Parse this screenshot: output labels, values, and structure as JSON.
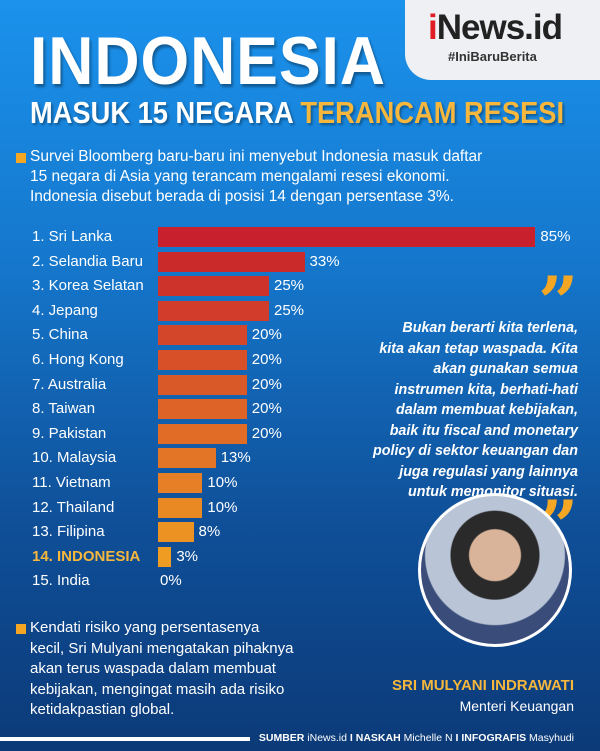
{
  "logo": {
    "brand": "iNews.id",
    "tagline": "#IniBaruBerita"
  },
  "title": {
    "line1": "INDONESIA",
    "line2_white": "MASUK 15 NEGARA",
    "line2_yellow": "TERANCAM RESESI"
  },
  "intro": [
    "Survei Bloomberg baru-baru ini menyebut Indonesia masuk daftar",
    "15 negara di Asia yang terancam mengalami resesi ekonomi.",
    "Indonesia disebut berada di posisi 14 dengan persentase 3%."
  ],
  "chart_data": {
    "type": "bar",
    "orientation": "horizontal",
    "categories": [
      "1. Sri Lanka",
      "2. Selandia Baru",
      "3. Korea Selatan",
      "4. Jepang",
      "5. China",
      "6. Hong Kong",
      "7. Australia",
      "8. Taiwan",
      "9. Pakistan",
      "10. Malaysia",
      "11. Vietnam",
      "12. Thailand",
      "13. Filipina",
      "14. INDONESIA",
      "15. India"
    ],
    "values": [
      85,
      33,
      25,
      25,
      20,
      20,
      20,
      20,
      20,
      13,
      10,
      10,
      8,
      3,
      0
    ],
    "value_labels": [
      "85%",
      "33%",
      "25%",
      "25%",
      "20%",
      "20%",
      "20%",
      "20%",
      "20%",
      "13%",
      "10%",
      "10%",
      "8%",
      "3%",
      "0%"
    ],
    "highlight": "14. INDONESIA",
    "xlim": [
      0,
      100
    ],
    "colors": {
      "high": "#c8202c",
      "low": "#f2a522",
      "highlight_label": "#f6b73c"
    }
  },
  "quote": [
    "Bukan berarti kita terlena,",
    "kita akan tetap waspada. Kita",
    "akan gunakan semua",
    "instrumen kita, berhati-hati",
    "dalam membuat kebijakan,",
    "baik itu fiscal and monetary",
    "policy di sektor keuangan dan",
    "juga regulasi yang lainnya",
    "untuk memonitor situasi."
  ],
  "person": {
    "name": "SRI MULYANI INDRAWATI",
    "role": "Menteri Keuangan"
  },
  "outro": [
    "Kendati risiko yang persentasenya",
    "kecil, Sri Mulyani mengatakan pihaknya",
    "akan terus waspada dalam membuat",
    "kebijakan, mengingat masih ada risiko",
    "ketidakpastian global."
  ],
  "credits": {
    "k1": "SUMBER",
    "v1": "iNews.id",
    "k2": "NASKAH",
    "v2": "Michelle N",
    "k3": "INFOGRAFIS",
    "v3": "Masyhudi",
    "sep": "I"
  }
}
